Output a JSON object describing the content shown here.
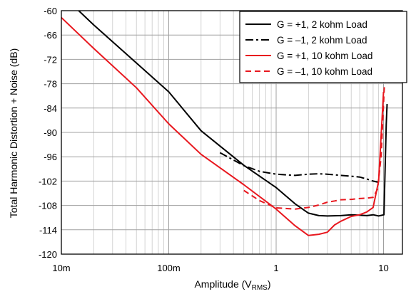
{
  "chart_data": {
    "type": "line",
    "x_scale": "log",
    "xlim": [
      0.01,
      15
    ],
    "ylim": [
      -120,
      -60
    ],
    "grid": true,
    "legend_position": "top-right",
    "xlabel": "Amplitude (V",
    "xlabel_sub": "RMS",
    "xlabel_end": ")",
    "ylabel": "Total Harmonic Distortion + Noise (dB)",
    "x_ticks": [
      0.01,
      0.1,
      1,
      10
    ],
    "x_tick_labels": [
      "10m",
      "100m",
      "1",
      "10"
    ],
    "y_ticks": [
      -60,
      -66,
      -72,
      -78,
      -84,
      -90,
      -96,
      -102,
      -108,
      -114,
      -120
    ],
    "y_tick_labels": [
      "-60",
      "-66",
      "-72",
      "-78",
      "-84",
      "-90",
      "-96",
      "-102",
      "-108",
      "-114",
      "-120"
    ],
    "series": [
      {
        "name": "G = +1, 2 kohm Load",
        "color": "#000000",
        "dash": "solid",
        "points": [
          [
            0.0145,
            -60
          ],
          [
            0.02,
            -63.5
          ],
          [
            0.05,
            -72.9
          ],
          [
            0.1,
            -80
          ],
          [
            0.2,
            -89.6
          ],
          [
            0.5,
            -98.1
          ],
          [
            1,
            -103.6
          ],
          [
            1.5,
            -107.6
          ],
          [
            2,
            -109.9
          ],
          [
            2.5,
            -110.5
          ],
          [
            3,
            -110.6
          ],
          [
            4,
            -110.5
          ],
          [
            5,
            -110.3
          ],
          [
            6,
            -110.4
          ],
          [
            7,
            -110.5
          ],
          [
            8,
            -110.3
          ],
          [
            9,
            -110.6
          ],
          [
            10.1,
            -110.3
          ],
          [
            10.6,
            -88
          ],
          [
            10.8,
            -83
          ]
        ]
      },
      {
        "name": "G = –1, 2 kohm Load",
        "color": "#000000",
        "dash": "dashdot",
        "points": [
          [
            0.3,
            -95
          ],
          [
            0.5,
            -98.2
          ],
          [
            0.7,
            -99.6
          ],
          [
            1,
            -100.3
          ],
          [
            1.5,
            -100.6
          ],
          [
            2,
            -100.3
          ],
          [
            2.5,
            -100.2
          ],
          [
            3,
            -100.3
          ],
          [
            4,
            -100.6
          ],
          [
            5,
            -100.8
          ],
          [
            6,
            -101
          ],
          [
            7,
            -101.5
          ],
          [
            8,
            -102
          ],
          [
            9,
            -102.3
          ]
        ]
      },
      {
        "name": "G = +1, 10 kohm Load",
        "color": "#e8171e",
        "dash": "solid",
        "points": [
          [
            0.01,
            -61.7
          ],
          [
            0.02,
            -69.3
          ],
          [
            0.05,
            -79
          ],
          [
            0.1,
            -87.9
          ],
          [
            0.2,
            -95.4
          ],
          [
            0.5,
            -102.9
          ],
          [
            1,
            -108.9
          ],
          [
            1.5,
            -113
          ],
          [
            2,
            -115.4
          ],
          [
            2.5,
            -115.1
          ],
          [
            3,
            -114.6
          ],
          [
            3.5,
            -112.8
          ],
          [
            4,
            -111.9
          ],
          [
            5,
            -110.7
          ],
          [
            6,
            -110.3
          ],
          [
            7,
            -109.6
          ],
          [
            8,
            -108.5
          ],
          [
            9,
            -102
          ],
          [
            10,
            -80
          ]
        ]
      },
      {
        "name": "G = –1, 10 kohm Load",
        "color": "#e8171e",
        "dash": "dash",
        "points": [
          [
            0.5,
            -104.3
          ],
          [
            0.7,
            -106.8
          ],
          [
            1,
            -108.6
          ],
          [
            1.5,
            -108.9
          ],
          [
            2,
            -108.5
          ],
          [
            2.5,
            -107.9
          ],
          [
            3,
            -107.2
          ],
          [
            3.5,
            -106.9
          ],
          [
            4,
            -106.6
          ],
          [
            5,
            -106.5
          ],
          [
            6,
            -106.3
          ],
          [
            7,
            -106.2
          ],
          [
            8,
            -106
          ],
          [
            8.8,
            -104
          ],
          [
            9.5,
            -96
          ],
          [
            10.2,
            -78
          ]
        ]
      }
    ]
  }
}
